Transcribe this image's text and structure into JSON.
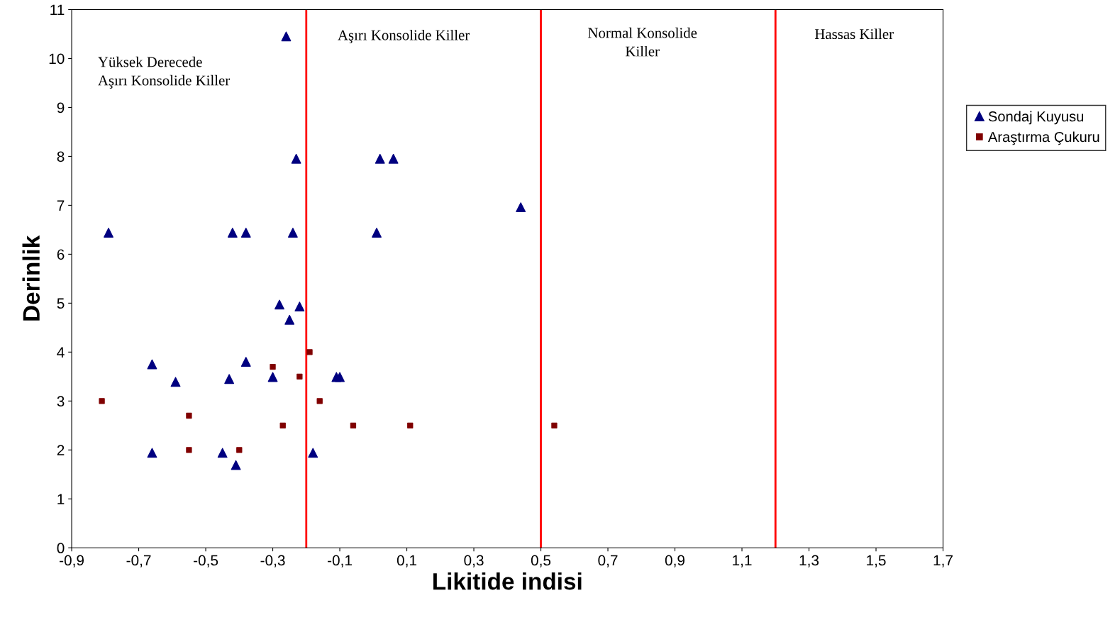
{
  "chart_data": {
    "type": "scatter",
    "xlabel": "Likitide indisi",
    "ylabel": "Derinlik",
    "xlim": [
      -0.9,
      1.7
    ],
    "ylim": [
      0,
      11
    ],
    "xticks": [
      {
        "value": -0.9,
        "label": "-0,9"
      },
      {
        "value": -0.7,
        "label": "-0,7"
      },
      {
        "value": -0.5,
        "label": "-0,5"
      },
      {
        "value": -0.3,
        "label": "-0,3"
      },
      {
        "value": -0.1,
        "label": "-0,1"
      },
      {
        "value": 0.1,
        "label": "0,1"
      },
      {
        "value": 0.3,
        "label": "0,3"
      },
      {
        "value": 0.5,
        "label": "0,5"
      },
      {
        "value": 0.7,
        "label": "0,7"
      },
      {
        "value": 0.9,
        "label": "0,9"
      },
      {
        "value": 1.1,
        "label": "1,1"
      },
      {
        "value": 1.3,
        "label": "1,3"
      },
      {
        "value": 1.5,
        "label": "1,5"
      },
      {
        "value": 1.7,
        "label": "1,7"
      }
    ],
    "yticks": [
      0,
      1,
      2,
      3,
      4,
      5,
      6,
      7,
      8,
      9,
      10,
      11
    ],
    "grid": false,
    "legend": "right",
    "series": [
      {
        "name": "Sondaj Kuyusu",
        "color": "#000080",
        "marker": "triangle",
        "x": [
          -0.26,
          -0.79,
          -0.23,
          0.02,
          0.06,
          0.44,
          -0.42,
          -0.38,
          -0.24,
          0.01,
          -0.28,
          -0.22,
          -0.25,
          -0.66,
          -0.59,
          -0.38,
          -0.43,
          -0.3,
          -0.11,
          -0.1,
          -0.66,
          -0.45,
          -0.41,
          -0.18
        ],
        "values": [
          10.45,
          6.44,
          7.95,
          7.95,
          7.95,
          6.96,
          6.44,
          6.44,
          6.44,
          6.44,
          4.97,
          4.93,
          4.66,
          3.75,
          3.39,
          3.8,
          3.45,
          3.49,
          3.49,
          3.49,
          1.94,
          1.94,
          1.69,
          1.94
        ]
      },
      {
        "name": "Araştırma Çukuru",
        "color": "#800000",
        "marker": "square",
        "x": [
          -0.81,
          -0.55,
          -0.55,
          -0.4,
          -0.3,
          -0.27,
          -0.22,
          -0.19,
          -0.16,
          -0.06,
          0.11,
          0.54
        ],
        "values": [
          3.0,
          2.7,
          2.0,
          2.0,
          3.7,
          2.5,
          3.5,
          4.0,
          3.0,
          2.5,
          2.5,
          2.5
        ]
      }
    ],
    "ref_lines": [
      {
        "axis": "x",
        "value": -0.2,
        "color": "#ff0000"
      },
      {
        "axis": "x",
        "value": 0.5,
        "color": "#ff0000"
      },
      {
        "axis": "x",
        "value": 1.2,
        "color": "#ff0000"
      }
    ],
    "annotations": [
      "Yüksek Derecede\nAşırı Konsolide Killer",
      "Aşırı Konsolide Killer",
      "Normal Konsolide\nKiller",
      "Hassas Killer"
    ]
  }
}
